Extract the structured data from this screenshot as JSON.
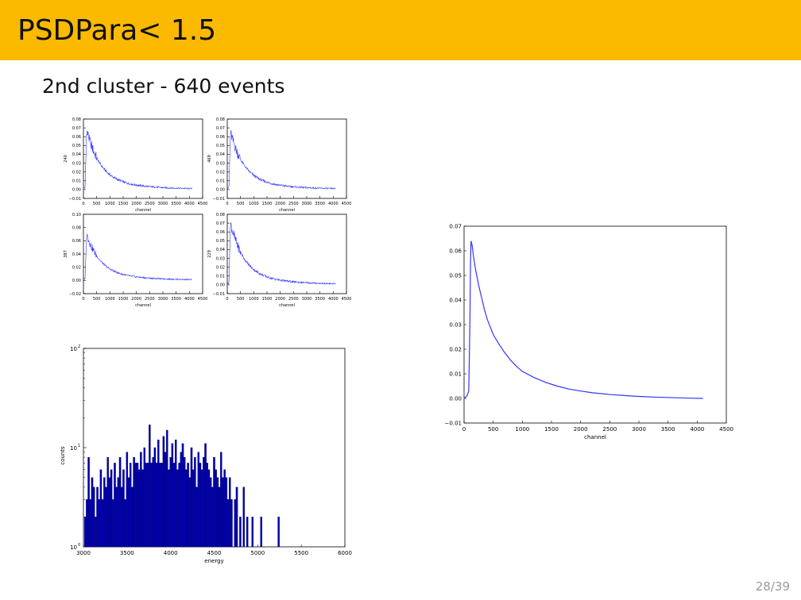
{
  "slide": {
    "title": "PSDPara< 1.5",
    "subtitle": "2nd cluster - 640 events",
    "page": "28/39"
  },
  "colors": {
    "header": "#fbba00",
    "line": "#3333ff",
    "bar_fill": "#0000aa",
    "bar_edge": "#000066"
  },
  "chart_data": [
    {
      "type": "line",
      "panel": "top-left",
      "xlabel": "channel",
      "ylabel": "240",
      "xlim": [
        0,
        4500
      ],
      "ylim": [
        -0.01,
        0.08
      ],
      "xticks": [
        "0",
        "500",
        "1000",
        "1500",
        "2000",
        "2500",
        "3000",
        "3500",
        "4000",
        "4500"
      ],
      "yticks": [
        "−0.01",
        "0.00",
        "0.01",
        "0.02",
        "0.03",
        "0.04",
        "0.05",
        "0.06",
        "0.07",
        "0.08"
      ],
      "series": [
        {
          "peak_x": 120,
          "peak_y": 0.068,
          "tail_y": 0.0,
          "end_x": 4096
        }
      ]
    },
    {
      "type": "line",
      "panel": "top-right",
      "xlabel": "channel",
      "ylabel": "469",
      "xlim": [
        0,
        4500
      ],
      "ylim": [
        -0.01,
        0.08
      ],
      "xticks": [
        "0",
        "500",
        "1000",
        "1500",
        "2000",
        "2500",
        "3000",
        "3500",
        "4000",
        "4500"
      ],
      "yticks": [
        "−0.01",
        "0.00",
        "0.01",
        "0.02",
        "0.03",
        "0.04",
        "0.05",
        "0.06",
        "0.07",
        "0.08"
      ],
      "series": [
        {
          "peak_x": 120,
          "peak_y": 0.065,
          "tail_y": 0.0,
          "end_x": 4096
        }
      ]
    },
    {
      "type": "line",
      "panel": "middle-left",
      "xlabel": "channel",
      "ylabel": "387",
      "xlim": [
        0,
        4500
      ],
      "ylim": [
        -0.02,
        0.1
      ],
      "xticks": [
        "0",
        "500",
        "1000",
        "1500",
        "2000",
        "2500",
        "3000",
        "3500",
        "4000",
        "4500"
      ],
      "yticks": [
        "−0.02",
        "0.00",
        "0.02",
        "0.04",
        "0.06",
        "0.08",
        "0.10"
      ],
      "series": [
        {
          "peak_x": 120,
          "peak_y": 0.07,
          "tail_y": 0.0,
          "end_x": 4096
        }
      ]
    },
    {
      "type": "line",
      "panel": "middle-right",
      "xlabel": "channel",
      "ylabel": "229",
      "xlim": [
        0,
        4500
      ],
      "ylim": [
        -0.01,
        0.08
      ],
      "xticks": [
        "0",
        "500",
        "1000",
        "1500",
        "2000",
        "2500",
        "3000",
        "3500",
        "4000",
        "4500"
      ],
      "yticks": [
        "−0.01",
        "0.00",
        "0.01",
        "0.02",
        "0.03",
        "0.04",
        "0.05",
        "0.06",
        "0.07",
        "0.08"
      ],
      "series": [
        {
          "peak_x": 120,
          "peak_y": 0.07,
          "tail_y": 0.0,
          "end_x": 4096
        }
      ]
    },
    {
      "type": "line",
      "panel": "right",
      "xlabel": "channel",
      "ylabel": "",
      "xlim": [
        0,
        4500
      ],
      "ylim": [
        -0.01,
        0.07
      ],
      "xticks": [
        "0",
        "500",
        "1000",
        "1500",
        "2000",
        "2500",
        "3000",
        "3500",
        "4000",
        "4500"
      ],
      "yticks": [
        "−0.01",
        "0.00",
        "0.01",
        "0.02",
        "0.03",
        "0.04",
        "0.05",
        "0.06",
        "0.07"
      ],
      "series": [
        {
          "x": [
            0,
            50,
            80,
            100,
            110,
            120,
            140,
            160,
            200,
            250,
            300,
            350,
            400,
            450,
            500,
            600,
            700,
            800,
            900,
            1000,
            1200,
            1400,
            1600,
            1800,
            2000,
            2200,
            2500,
            2800,
            3000,
            3300,
            3600,
            3900,
            4100
          ],
          "y": [
            0.0,
            0.001,
            0.003,
            0.03,
            0.055,
            0.064,
            0.062,
            0.058,
            0.052,
            0.046,
            0.041,
            0.036,
            0.032,
            0.029,
            0.026,
            0.022,
            0.0185,
            0.0155,
            0.013,
            0.011,
            0.0085,
            0.0065,
            0.005,
            0.0038,
            0.003,
            0.0023,
            0.0016,
            0.0011,
            0.0008,
            0.0005,
            0.0003,
            0.0001,
            0.0
          ]
        }
      ]
    },
    {
      "type": "bar",
      "panel": "bottom-left",
      "yscale": "log",
      "xlabel": "energy",
      "ylabel": "counts",
      "xlim": [
        3000,
        6000
      ],
      "ylim": [
        1,
        100
      ],
      "xticks": [
        "3000",
        "3500",
        "4000",
        "4500",
        "5000",
        "5500",
        "6000"
      ],
      "yticks_mantissa": [
        "10",
        "10",
        "10"
      ],
      "yticks_exp": [
        "0",
        "1",
        "2"
      ],
      "bin_width": 20,
      "bin_starts": [
        3010,
        3030,
        3050,
        3070,
        3090,
        3110,
        3130,
        3150,
        3170,
        3190,
        3210,
        3230,
        3250,
        3270,
        3290,
        3310,
        3330,
        3350,
        3370,
        3390,
        3410,
        3430,
        3450,
        3470,
        3490,
        3510,
        3530,
        3550,
        3570,
        3590,
        3610,
        3630,
        3650,
        3670,
        3690,
        3710,
        3730,
        3750,
        3770,
        3790,
        3810,
        3830,
        3850,
        3870,
        3890,
        3910,
        3930,
        3950,
        3970,
        3990,
        4010,
        4030,
        4050,
        4070,
        4090,
        4110,
        4130,
        4150,
        4170,
        4190,
        4210,
        4230,
        4250,
        4270,
        4290,
        4310,
        4330,
        4350,
        4370,
        4390,
        4410,
        4430,
        4450,
        4470,
        4490,
        4510,
        4530,
        4550,
        4570,
        4590,
        4610,
        4630,
        4650,
        4670,
        4690,
        4730,
        4750,
        4790,
        4830,
        4870,
        4930,
        5030,
        5230
      ],
      "values": [
        2,
        3,
        8,
        3,
        5,
        4,
        2,
        4,
        3,
        6,
        3,
        5,
        4,
        8,
        5,
        6,
        3,
        7,
        4,
        5,
        8,
        4,
        6,
        3,
        9,
        5,
        7,
        4,
        8,
        7,
        7,
        6,
        9,
        6,
        10,
        7,
        7,
        17,
        7,
        8,
        10,
        7,
        12,
        7,
        7,
        13,
        9,
        15,
        6,
        8,
        11,
        7,
        12,
        6,
        7,
        9,
        11,
        8,
        6,
        7,
        5,
        10,
        6,
        8,
        4,
        9,
        7,
        6,
        8,
        11,
        7,
        6,
        5,
        4,
        8,
        6,
        5,
        4,
        9,
        5,
        6,
        5,
        3,
        5,
        3,
        3,
        4,
        2,
        4,
        2,
        2,
        2,
        2
      ]
    }
  ]
}
